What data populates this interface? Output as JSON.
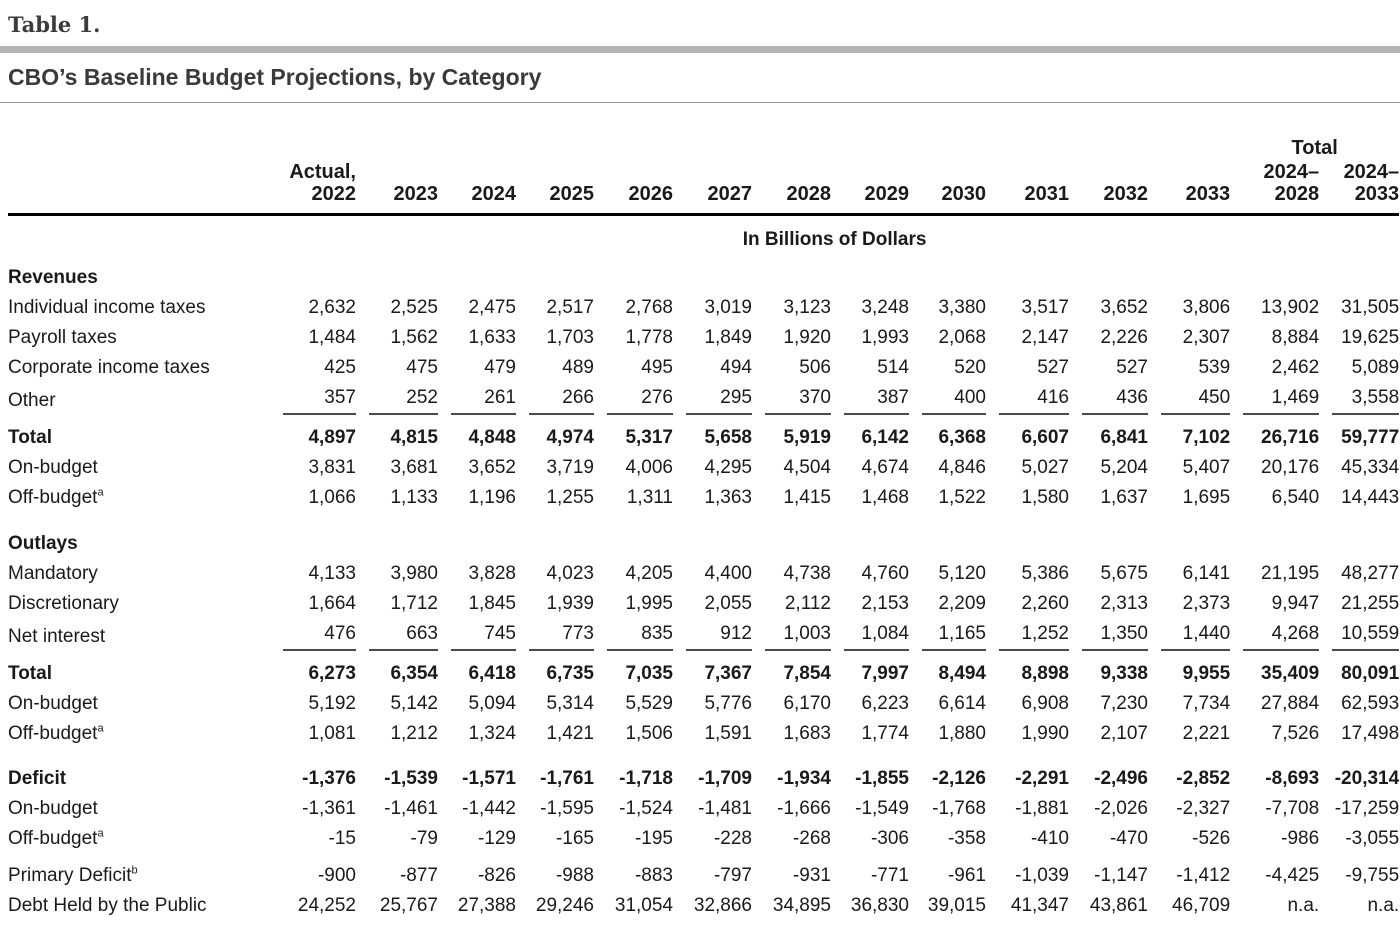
{
  "header": {
    "table_number": "Table 1.",
    "title": "CBO’s Baseline Budget Projections, by Category"
  },
  "table": {
    "units": "In Billions of Dollars",
    "col_group_label": "Total",
    "columns": [
      "Actual,\n2022",
      "2023",
      "2024",
      "2025",
      "2026",
      "2027",
      "2028",
      "2029",
      "2030",
      "2031",
      "2032",
      "2033",
      "2024–\n2028",
      "2024–\n2033"
    ],
    "rows": [
      {
        "type": "section",
        "label": "Revenues"
      },
      {
        "type": "data",
        "indent": 1,
        "label": "Individual income taxes",
        "values": [
          "2,632",
          "2,525",
          "2,475",
          "2,517",
          "2,768",
          "3,019",
          "3,123",
          "3,248",
          "3,380",
          "3,517",
          "3,652",
          "3,806",
          "13,902",
          "31,505"
        ]
      },
      {
        "type": "data",
        "indent": 1,
        "label": "Payroll taxes",
        "values": [
          "1,484",
          "1,562",
          "1,633",
          "1,703",
          "1,778",
          "1,849",
          "1,920",
          "1,993",
          "2,068",
          "2,147",
          "2,226",
          "2,307",
          "8,884",
          "19,625"
        ]
      },
      {
        "type": "data",
        "indent": 1,
        "label": "Corporate income taxes",
        "values": [
          "425",
          "475",
          "479",
          "489",
          "495",
          "494",
          "506",
          "514",
          "520",
          "527",
          "527",
          "539",
          "2,462",
          "5,089"
        ]
      },
      {
        "type": "data",
        "indent": 1,
        "label": "Other",
        "rule_below": true,
        "values": [
          "357",
          "252",
          "261",
          "266",
          "276",
          "295",
          "370",
          "387",
          "400",
          "416",
          "436",
          "450",
          "1,469",
          "3,558"
        ]
      },
      {
        "type": "data",
        "indent": 2,
        "label": "Total",
        "bold": true,
        "after_rule": true,
        "values": [
          "4,897",
          "4,815",
          "4,848",
          "4,974",
          "5,317",
          "5,658",
          "5,919",
          "6,142",
          "6,368",
          "6,607",
          "6,841",
          "7,102",
          "26,716",
          "59,777"
        ]
      },
      {
        "type": "data",
        "indent": 3,
        "label": "On-budget",
        "values": [
          "3,831",
          "3,681",
          "3,652",
          "3,719",
          "4,006",
          "4,295",
          "4,504",
          "4,674",
          "4,846",
          "5,027",
          "5,204",
          "5,407",
          "20,176",
          "45,334"
        ]
      },
      {
        "type": "data",
        "indent": 3,
        "label": "Off-budget",
        "sup": "a",
        "values": [
          "1,066",
          "1,133",
          "1,196",
          "1,255",
          "1,311",
          "1,363",
          "1,415",
          "1,468",
          "1,522",
          "1,580",
          "1,637",
          "1,695",
          "6,540",
          "14,443"
        ]
      },
      {
        "type": "spacer"
      },
      {
        "type": "section",
        "label": "Outlays"
      },
      {
        "type": "data",
        "indent": 1,
        "label": "Mandatory",
        "values": [
          "4,133",
          "3,980",
          "3,828",
          "4,023",
          "4,205",
          "4,400",
          "4,738",
          "4,760",
          "5,120",
          "5,386",
          "5,675",
          "6,141",
          "21,195",
          "48,277"
        ]
      },
      {
        "type": "data",
        "indent": 1,
        "label": "Discretionary",
        "values": [
          "1,664",
          "1,712",
          "1,845",
          "1,939",
          "1,995",
          "2,055",
          "2,112",
          "2,153",
          "2,209",
          "2,260",
          "2,313",
          "2,373",
          "9,947",
          "21,255"
        ]
      },
      {
        "type": "data",
        "indent": 1,
        "label": "Net interest",
        "rule_below": true,
        "values": [
          "476",
          "663",
          "745",
          "773",
          "835",
          "912",
          "1,003",
          "1,084",
          "1,165",
          "1,252",
          "1,350",
          "1,440",
          "4,268",
          "10,559"
        ]
      },
      {
        "type": "data",
        "indent": 2,
        "label": "Total",
        "bold": true,
        "after_rule": true,
        "values": [
          "6,273",
          "6,354",
          "6,418",
          "6,735",
          "7,035",
          "7,367",
          "7,854",
          "7,997",
          "8,494",
          "8,898",
          "9,338",
          "9,955",
          "35,409",
          "80,091"
        ]
      },
      {
        "type": "data",
        "indent": 3,
        "label": "On-budget",
        "values": [
          "5,192",
          "5,142",
          "5,094",
          "5,314",
          "5,529",
          "5,776",
          "6,170",
          "6,223",
          "6,614",
          "6,908",
          "7,230",
          "7,734",
          "27,884",
          "62,593"
        ]
      },
      {
        "type": "data",
        "indent": 3,
        "label": "Off-budget",
        "sup": "a",
        "values": [
          "1,081",
          "1,212",
          "1,324",
          "1,421",
          "1,506",
          "1,591",
          "1,683",
          "1,774",
          "1,880",
          "1,990",
          "2,107",
          "2,221",
          "7,526",
          "17,498"
        ]
      },
      {
        "type": "spacer"
      },
      {
        "type": "data",
        "indent": 0,
        "label": "Deficit",
        "bold": true,
        "values": [
          "-1,376",
          "-1,539",
          "-1,571",
          "-1,761",
          "-1,718",
          "-1,709",
          "-1,934",
          "-1,855",
          "-2,126",
          "-2,291",
          "-2,496",
          "-2,852",
          "-8,693",
          "-20,314"
        ]
      },
      {
        "type": "data",
        "indent": 1,
        "label": "On-budget",
        "values": [
          "-1,361",
          "-1,461",
          "-1,442",
          "-1,595",
          "-1,524",
          "-1,481",
          "-1,666",
          "-1,549",
          "-1,768",
          "-1,881",
          "-2,026",
          "-2,327",
          "-7,708",
          "-17,259"
        ]
      },
      {
        "type": "data",
        "indent": 1,
        "label": "Off-budget",
        "sup": "a",
        "values": [
          "-15",
          "-79",
          "-129",
          "-165",
          "-195",
          "-228",
          "-268",
          "-306",
          "-358",
          "-410",
          "-470",
          "-526",
          "-986",
          "-3,055"
        ]
      },
      {
        "type": "spacer",
        "small": true
      },
      {
        "type": "data",
        "indent": 0,
        "label": "Primary Deficit",
        "sup": "b",
        "values": [
          "-900",
          "-877",
          "-826",
          "-988",
          "-883",
          "-797",
          "-931",
          "-771",
          "-961",
          "-1,039",
          "-1,147",
          "-1,412",
          "-4,425",
          "-9,755"
        ]
      },
      {
        "type": "data",
        "indent": 0,
        "label": "Debt Held by the Public",
        "values": [
          "24,252",
          "25,767",
          "27,388",
          "29,246",
          "31,054",
          "32,866",
          "34,895",
          "36,830",
          "39,015",
          "41,347",
          "43,861",
          "46,709",
          "n.a.",
          "n.a."
        ]
      }
    ]
  }
}
